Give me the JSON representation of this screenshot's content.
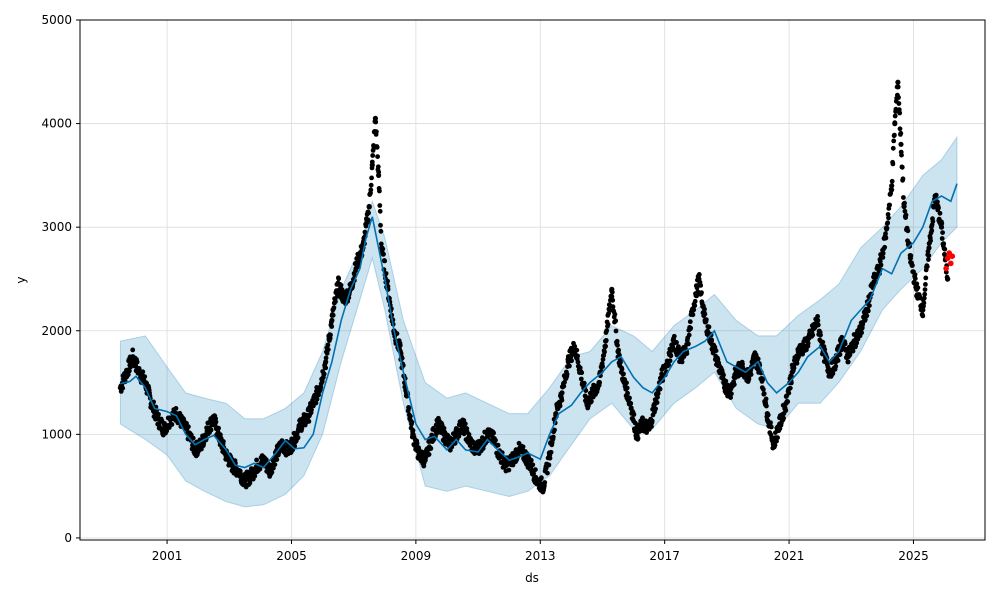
{
  "chart_data": {
    "type": "line",
    "xlabel": "ds",
    "ylabel": "y",
    "xlim": [
      1998.2,
      2027.3
    ],
    "ylim": [
      -20,
      5000
    ],
    "grid": true,
    "x_ticks": [
      2001,
      2005,
      2009,
      2013,
      2017,
      2021,
      2025
    ],
    "x_tick_labels": [
      "2001",
      "2005",
      "2009",
      "2013",
      "2017",
      "2021",
      "2025"
    ],
    "y_ticks": [
      0,
      1000,
      2000,
      3000,
      4000,
      5000
    ],
    "y_tick_labels": [
      "0",
      "1000",
      "2000",
      "3000",
      "4000",
      "5000"
    ],
    "colors": {
      "observed": "#000000",
      "recent_observed": "#ff0000",
      "forecast": "#0072B2",
      "band": "#0072B2",
      "grid": "#dcdcdc"
    },
    "series": [
      {
        "role": "forecast",
        "x": [
          1999.5,
          1999.8,
          2000.0,
          2000.3,
          2000.6,
          2001.0,
          2001.3,
          2001.6,
          2001.9,
          2002.2,
          2002.5,
          2002.9,
          2003.2,
          2003.5,
          2003.8,
          2004.1,
          2004.5,
          2004.8,
          2005.1,
          2005.4,
          2005.7,
          2006.0,
          2006.3,
          2006.6,
          2006.9,
          2007.2,
          2007.4,
          2007.6,
          2007.8,
          2008.0,
          2008.3,
          2008.6,
          2009.0,
          2009.3,
          2009.6,
          2010.0,
          2010.3,
          2010.6,
          2011.0,
          2011.3,
          2011.6,
          2012.0,
          2012.3,
          2012.6,
          2013.0,
          2013.3,
          2013.6,
          2014.0,
          2014.3,
          2014.6,
          2015.0,
          2015.3,
          2015.6,
          2016.0,
          2016.3,
          2016.6,
          2017.0,
          2017.3,
          2017.6,
          2018.0,
          2018.3,
          2018.6,
          2019.0,
          2019.3,
          2019.6,
          2020.0,
          2020.3,
          2020.6,
          2021.0,
          2021.3,
          2021.6,
          2022.0,
          2022.3,
          2022.6,
          2023.0,
          2023.3,
          2023.6,
          2024.0,
          2024.3,
          2024.6,
          2025.0,
          2025.3,
          2025.6,
          2025.9,
          2026.2,
          2026.4
        ],
        "y": [
          1490,
          1510,
          1560,
          1450,
          1250,
          1220,
          1180,
          1000,
          900,
          950,
          990,
          850,
          700,
          680,
          720,
          680,
          820,
          940,
          860,
          870,
          1000,
          1400,
          1700,
          2100,
          2400,
          2600,
          2900,
          3100,
          2800,
          2500,
          2000,
          1600,
          1100,
          950,
          980,
          850,
          950,
          850,
          830,
          950,
          860,
          750,
          780,
          820,
          760,
          1000,
          1200,
          1280,
          1400,
          1500,
          1600,
          1700,
          1750,
          1550,
          1450,
          1400,
          1550,
          1700,
          1800,
          1850,
          1900,
          2000,
          1700,
          1650,
          1600,
          1700,
          1500,
          1400,
          1500,
          1600,
          1750,
          1850,
          1700,
          1800,
          2100,
          2200,
          2300,
          2600,
          2550,
          2750,
          2850,
          3000,
          3250,
          3300,
          3250,
          3420
        ]
      },
      {
        "role": "forecast_lower",
        "x": [
          1999.5,
          2000.3,
          2001.0,
          2001.6,
          2002.2,
          2002.9,
          2003.5,
          2004.1,
          2004.8,
          2005.4,
          2006.0,
          2006.6,
          2007.2,
          2007.6,
          2008.0,
          2008.6,
          2009.3,
          2010.0,
          2010.6,
          2011.3,
          2012.0,
          2012.6,
          2013.3,
          2014.0,
          2014.6,
          2015.3,
          2016.0,
          2016.6,
          2017.3,
          2018.0,
          2018.6,
          2019.3,
          2020.0,
          2020.6,
          2021.3,
          2022.0,
          2022.6,
          2023.3,
          2024.0,
          2024.6,
          2025.3,
          2025.9,
          2026.4
        ],
        "y": [
          1100,
          950,
          800,
          550,
          450,
          350,
          300,
          320,
          420,
          600,
          1000,
          1700,
          2300,
          2700,
          2200,
          1300,
          500,
          450,
          500,
          450,
          400,
          450,
          600,
          900,
          1150,
          1300,
          1050,
          1050,
          1300,
          1450,
          1600,
          1250,
          1100,
          1050,
          1300,
          1300,
          1500,
          1800,
          2200,
          2400,
          2600,
          2850,
          3000
        ]
      },
      {
        "role": "forecast_upper",
        "x": [
          1999.5,
          2000.3,
          2001.0,
          2001.6,
          2002.2,
          2002.9,
          2003.5,
          2004.1,
          2004.8,
          2005.4,
          2006.0,
          2006.6,
          2007.2,
          2007.6,
          2008.0,
          2008.6,
          2009.3,
          2010.0,
          2010.6,
          2011.3,
          2012.0,
          2012.6,
          2013.3,
          2014.0,
          2014.6,
          2015.3,
          2016.0,
          2016.6,
          2017.3,
          2018.0,
          2018.6,
          2019.3,
          2020.0,
          2020.6,
          2021.3,
          2022.0,
          2022.6,
          2023.3,
          2024.0,
          2024.6,
          2025.3,
          2025.9,
          2026.4
        ],
        "y": [
          1900,
          1950,
          1650,
          1400,
          1350,
          1300,
          1150,
          1150,
          1250,
          1400,
          1800,
          2400,
          2800,
          3250,
          2900,
          2100,
          1500,
          1350,
          1400,
          1300,
          1200,
          1200,
          1450,
          1750,
          1800,
          2050,
          1950,
          1800,
          2050,
          2200,
          2350,
          2100,
          1950,
          1950,
          2150,
          2300,
          2450,
          2800,
          3000,
          3200,
          3500,
          3650,
          3870
        ]
      },
      {
        "role": "observed",
        "x": [
          1999.5,
          1999.7,
          1999.9,
          2000.1,
          2000.3,
          2000.5,
          2000.7,
          2000.9,
          2001.1,
          2001.3,
          2001.5,
          2001.7,
          2001.9,
          2002.1,
          2002.3,
          2002.5,
          2002.7,
          2002.9,
          2003.1,
          2003.3,
          2003.5,
          2003.7,
          2003.9,
          2004.1,
          2004.3,
          2004.5,
          2004.7,
          2004.9,
          2005.1,
          2005.3,
          2005.5,
          2005.7,
          2005.9,
          2006.1,
          2006.3,
          2006.5,
          2006.7,
          2006.9,
          2007.1,
          2007.3,
          2007.5,
          2007.6,
          2007.7,
          2007.8,
          2007.9,
          2008.1,
          2008.3,
          2008.5,
          2008.7,
          2008.9,
          2009.1,
          2009.3,
          2009.5,
          2009.7,
          2009.9,
          2010.1,
          2010.3,
          2010.5,
          2010.7,
          2010.9,
          2011.1,
          2011.3,
          2011.5,
          2011.7,
          2011.9,
          2012.1,
          2012.3,
          2012.5,
          2012.7,
          2012.9,
          2013.1,
          2013.3,
          2013.5,
          2013.7,
          2013.9,
          2014.1,
          2014.3,
          2014.5,
          2014.7,
          2014.9,
          2015.1,
          2015.3,
          2015.5,
          2015.7,
          2015.9,
          2016.1,
          2016.3,
          2016.5,
          2016.7,
          2016.9,
          2017.1,
          2017.3,
          2017.5,
          2017.7,
          2017.9,
          2018.1,
          2018.3,
          2018.5,
          2018.7,
          2018.9,
          2019.1,
          2019.3,
          2019.5,
          2019.7,
          2019.9,
          2020.1,
          2020.3,
          2020.5,
          2020.7,
          2020.9,
          2021.1,
          2021.3,
          2021.5,
          2021.7,
          2021.9,
          2022.1,
          2022.3,
          2022.5,
          2022.7,
          2022.9,
          2023.1,
          2023.3,
          2023.5,
          2023.7,
          2023.9,
          2024.1,
          2024.3,
          2024.4,
          2024.5,
          2024.6,
          2024.7,
          2024.9,
          2025.1,
          2025.3,
          2025.5,
          2025.7,
          2025.9,
          2026.1
        ],
        "y": [
          1450,
          1600,
          1750,
          1600,
          1500,
          1300,
          1150,
          1050,
          1150,
          1200,
          1100,
          1000,
          850,
          900,
          1050,
          1150,
          950,
          800,
          700,
          650,
          550,
          600,
          700,
          750,
          650,
          800,
          900,
          850,
          950,
          1100,
          1150,
          1300,
          1450,
          1700,
          2100,
          2450,
          2300,
          2400,
          2650,
          2800,
          3200,
          3600,
          4050,
          3500,
          2800,
          2400,
          2000,
          1800,
          1400,
          1000,
          800,
          750,
          950,
          1100,
          1000,
          900,
          1000,
          1100,
          950,
          850,
          900,
          1000,
          950,
          800,
          700,
          750,
          850,
          800,
          700,
          550,
          500,
          800,
          1200,
          1400,
          1700,
          1850,
          1600,
          1300,
          1400,
          1500,
          1900,
          2400,
          1800,
          1500,
          1300,
          1000,
          1100,
          1050,
          1300,
          1550,
          1700,
          1900,
          1750,
          1800,
          2200,
          2500,
          2100,
          1900,
          1700,
          1500,
          1400,
          1600,
          1650,
          1550,
          1750,
          1600,
          1200,
          900,
          1100,
          1300,
          1600,
          1800,
          1850,
          1950,
          2100,
          1800,
          1600,
          1700,
          1900,
          1750,
          1900,
          2000,
          2200,
          2450,
          2600,
          2900,
          3400,
          4000,
          4400,
          3800,
          3200,
          2700,
          2400,
          2200,
          2800,
          3300,
          3000,
          2500
        ]
      },
      {
        "role": "recent_observed",
        "x": [
          2026.05,
          2026.1,
          2026.15,
          2026.2,
          2026.25
        ],
        "y": [
          2600,
          2700,
          2750,
          2650,
          2720
        ]
      }
    ]
  }
}
